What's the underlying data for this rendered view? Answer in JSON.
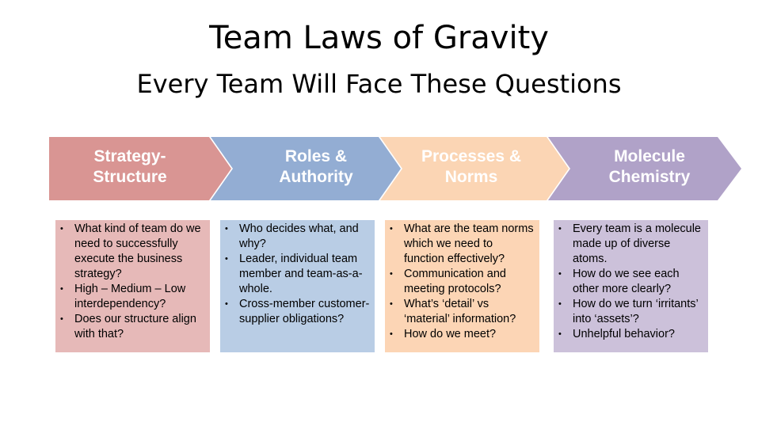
{
  "title": "Team Laws of Gravity",
  "subtitle": "Every Team Will Face These Questions",
  "colors": {
    "strategy": "#d99593",
    "roles": "#93add3",
    "processes": "#fbd5b4",
    "molecule": "#b0a2c8",
    "strategy_box": "#e6b9b8",
    "roles_box": "#b9cde5",
    "processes_box": "#fcd5b5",
    "molecule_box": "#ccc1da"
  },
  "stages": [
    {
      "label": "Strategy-\nStructure",
      "bullets": [
        "What kind of team do we need to successfully execute the business strategy?",
        "High – Medium – Low interdependency?",
        "Does our structure  align with that?"
      ]
    },
    {
      "label": "Roles &\nAuthority",
      "bullets": [
        "Who decides what, and why?",
        "Leader, individual team member and team-as-a-whole.",
        "Cross-member customer-supplier obligations?"
      ]
    },
    {
      "label": "Processes &\nNorms",
      "bullets": [
        "What are the team norms which we need to function effectively?",
        "Communication and meeting protocols?",
        "What’s ‘detail’ vs ‘material’ information?",
        "How do we meet?"
      ]
    },
    {
      "label": "Molecule\nChemistry",
      "bullets": [
        "Every team is a molecule made up of diverse atoms.",
        "How do we see each other more clearly?",
        "How do we turn ‘irritants’ into ‘assets’?",
        "Unhelpful  behavior?"
      ]
    }
  ]
}
